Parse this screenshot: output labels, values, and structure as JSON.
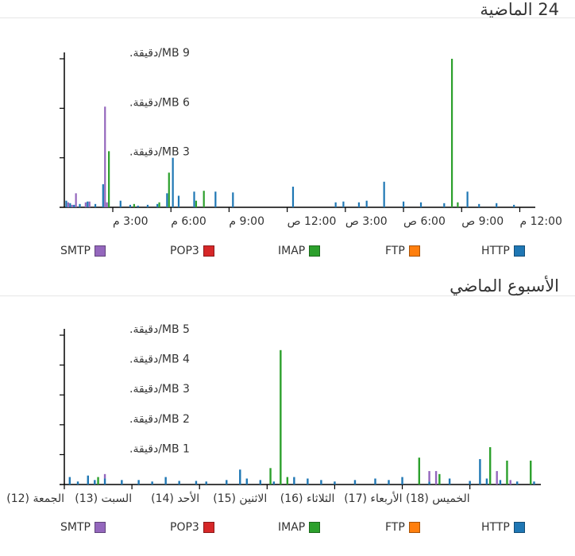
{
  "colors": {
    "HTTP": "#1f77b4",
    "FTP": "#ff7f0e",
    "IMAP": "#2ca02c",
    "POP3": "#d62728",
    "SMTP": "#9467bd"
  },
  "legend": [
    "HTTP",
    "FTP",
    "IMAP",
    "POP3",
    "SMTP"
  ],
  "chart_data": [
    {
      "type": "bar",
      "stacked": true,
      "title": "24 الماضية",
      "x_range_hours": [
        0,
        24.3
      ],
      "ylim": [
        0,
        9
      ],
      "y_ticks": [
        {
          "value": 3,
          "label": "3 MB/دقيقة."
        },
        {
          "value": 6,
          "label": "6 MB/دقيقة."
        },
        {
          "value": 9,
          "label": "9 MB/دقيقة."
        }
      ],
      "x_ticks": [
        {
          "value": 2.5,
          "label": "3:00 م"
        },
        {
          "value": 5.5,
          "label": "6:00 م"
        },
        {
          "value": 8.5,
          "label": "9:00 م"
        },
        {
          "value": 11.5,
          "label": "12:00 ص"
        },
        {
          "value": 14.5,
          "label": "3:00 ص"
        },
        {
          "value": 17.5,
          "label": "6:00 ص"
        },
        {
          "value": 20.5,
          "label": "9:00 ص"
        },
        {
          "value": 23.5,
          "label": "12:00 م"
        }
      ],
      "series": [
        {
          "name": "HTTP",
          "points": [
            [
              0.1,
              0.4
            ],
            [
              0.3,
              0.25
            ],
            [
              0.5,
              0.15
            ],
            [
              0.8,
              0.2
            ],
            [
              1.2,
              0.35
            ],
            [
              1.6,
              0.2
            ],
            [
              2.0,
              1.4
            ],
            [
              2.9,
              0.4
            ],
            [
              3.4,
              0.15
            ],
            [
              3.8,
              0.1
            ],
            [
              4.3,
              0.15
            ],
            [
              4.8,
              0.2
            ],
            [
              5.3,
              0.85
            ],
            [
              5.6,
              3.0
            ],
            [
              5.9,
              0.7
            ],
            [
              6.7,
              0.95
            ],
            [
              7.8,
              0.95
            ],
            [
              8.7,
              0.9
            ],
            [
              11.8,
              1.25
            ],
            [
              14.0,
              0.3
            ],
            [
              14.4,
              0.35
            ],
            [
              15.2,
              0.3
            ],
            [
              15.6,
              0.4
            ],
            [
              16.5,
              1.55
            ],
            [
              17.5,
              0.35
            ],
            [
              18.4,
              0.3
            ],
            [
              19.6,
              0.25
            ],
            [
              20.8,
              0.95
            ],
            [
              21.4,
              0.2
            ],
            [
              22.3,
              0.25
            ],
            [
              23.2,
              0.15
            ]
          ]
        },
        {
          "name": "IMAP",
          "points": [
            [
              2.3,
              3.4
            ],
            [
              3.6,
              0.2
            ],
            [
              4.9,
              0.3
            ],
            [
              5.4,
              2.1
            ],
            [
              6.8,
              0.4
            ],
            [
              7.2,
              1.0
            ],
            [
              20.0,
              9.0
            ],
            [
              20.3,
              0.3
            ]
          ]
        },
        {
          "name": "SMTP",
          "points": [
            [
              0.2,
              0.3
            ],
            [
              0.4,
              0.15
            ],
            [
              0.6,
              0.85
            ],
            [
              1.1,
              0.3
            ],
            [
              1.3,
              0.35
            ],
            [
              2.1,
              6.1
            ],
            [
              2.2,
              0.3
            ]
          ]
        },
        {
          "name": "POP3",
          "points": []
        },
        {
          "name": "FTP",
          "points": []
        }
      ]
    },
    {
      "type": "bar",
      "stacked": true,
      "title": "الأسبوع الماضي",
      "x_range_days": [
        0,
        7.05
      ],
      "ylim": [
        0,
        5
      ],
      "y_ticks": [
        {
          "value": 1,
          "label": "1 MB/دقيقة."
        },
        {
          "value": 2,
          "label": "2 MB/دقيقة."
        },
        {
          "value": 3,
          "label": "3 MB/دقيقة."
        },
        {
          "value": 4,
          "label": "4 MB/دقيقة."
        },
        {
          "value": 5,
          "label": "5 MB/دقيقة."
        }
      ],
      "x_ticks": [
        {
          "value": 0.0,
          "label": "الجمعة (12)"
        },
        {
          "value": 1.0,
          "label": "السبت (13)"
        },
        {
          "value": 2.0,
          "label": "الأحد (14)"
        },
        {
          "value": 3.0,
          "label": "الاثنين (15)"
        },
        {
          "value": 4.0,
          "label": "الثلاثاء (16)"
        },
        {
          "value": 5.0,
          "label": "الأربعاء (17)"
        },
        {
          "value": 6.0,
          "label": "الخميس (18)"
        }
      ],
      "series": [
        {
          "name": "HTTP",
          "points": [
            [
              0.08,
              0.25
            ],
            [
              0.2,
              0.1
            ],
            [
              0.35,
              0.3
            ],
            [
              0.45,
              0.15
            ],
            [
              0.6,
              0.2
            ],
            [
              0.85,
              0.15
            ],
            [
              1.1,
              0.15
            ],
            [
              1.3,
              0.1
            ],
            [
              1.5,
              0.25
            ],
            [
              1.7,
              0.12
            ],
            [
              1.95,
              0.12
            ],
            [
              2.1,
              0.1
            ],
            [
              2.4,
              0.15
            ],
            [
              2.6,
              0.5
            ],
            [
              2.7,
              0.2
            ],
            [
              2.9,
              0.15
            ],
            [
              3.1,
              0.1
            ],
            [
              3.4,
              0.25
            ],
            [
              3.6,
              0.2
            ],
            [
              3.8,
              0.15
            ],
            [
              4.0,
              0.1
            ],
            [
              4.3,
              0.15
            ],
            [
              4.6,
              0.2
            ],
            [
              4.8,
              0.15
            ],
            [
              5.0,
              0.25
            ],
            [
              5.4,
              0.1
            ],
            [
              5.7,
              0.2
            ],
            [
              6.0,
              0.12
            ],
            [
              6.15,
              0.85
            ],
            [
              6.25,
              0.2
            ],
            [
              6.45,
              0.15
            ],
            [
              6.7,
              0.1
            ],
            [
              6.95,
              0.1
            ]
          ]
        },
        {
          "name": "IMAP",
          "points": [
            [
              0.5,
              0.25
            ],
            [
              3.05,
              0.55
            ],
            [
              3.2,
              4.5
            ],
            [
              3.3,
              0.25
            ],
            [
              5.25,
              0.9
            ],
            [
              5.55,
              0.35
            ],
            [
              6.3,
              1.25
            ],
            [
              6.55,
              0.8
            ],
            [
              6.9,
              0.8
            ]
          ]
        },
        {
          "name": "SMTP",
          "points": [
            [
              0.6,
              0.15
            ],
            [
              5.4,
              0.35
            ],
            [
              5.5,
              0.45
            ],
            [
              6.4,
              0.45
            ],
            [
              6.6,
              0.15
            ]
          ]
        },
        {
          "name": "POP3",
          "points": []
        },
        {
          "name": "FTP",
          "points": []
        }
      ]
    }
  ]
}
